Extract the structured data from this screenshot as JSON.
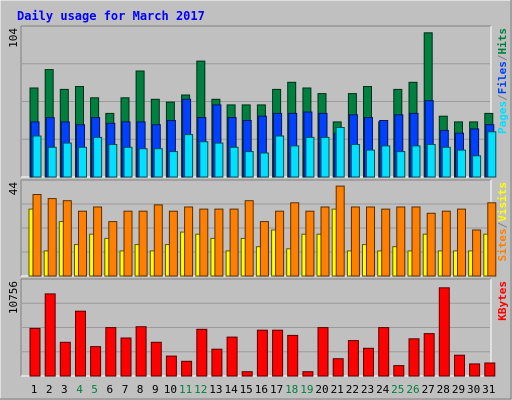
{
  "chart_data": {
    "type": "bar",
    "title": "Daily usage for March 2017",
    "days": [
      "1",
      "2",
      "3",
      "4",
      "5",
      "6",
      "7",
      "8",
      "9",
      "10",
      "11",
      "12",
      "13",
      "14",
      "15",
      "16",
      "17",
      "18",
      "19",
      "20",
      "21",
      "22",
      "23",
      "24",
      "25",
      "26",
      "27",
      "28",
      "29",
      "30",
      "31"
    ],
    "weekend_days": [
      "4",
      "5",
      "11",
      "12",
      "18",
      "19",
      "25",
      "26"
    ],
    "panels": [
      {
        "id": "top",
        "ymax_label": "104",
        "ymax": 104,
        "legend": [
          {
            "label": "Pages",
            "color": "#00e0ff"
          },
          {
            "label": "/",
            "color": "#808080"
          },
          {
            "label": "Files",
            "color": "#0040ff"
          },
          {
            "label": "/",
            "color": "#808080"
          },
          {
            "label": "Hits",
            "color": "#008040"
          }
        ],
        "series": [
          {
            "name": "Hits",
            "color": "#008040",
            "values": [
              63,
              76,
              62,
              64,
              56,
              45,
              56,
              75,
              55,
              53,
              58,
              82,
              55,
              51,
              51,
              51,
              62,
              67,
              63,
              59,
              39,
              59,
              64,
              39,
              62,
              67,
              102,
              43,
              39,
              39,
              45
            ]
          },
          {
            "name": "Files",
            "color": "#0040ff",
            "values": [
              39,
              42,
              39,
              37,
              42,
              38,
              39,
              39,
              37,
              40,
              55,
              42,
              51,
              42,
              40,
              43,
              45,
              45,
              46,
              45,
              31,
              44,
              42,
              40,
              44,
              45,
              54,
              33,
              31,
              34,
              37
            ]
          },
          {
            "name": "Pages",
            "color": "#00e0ff",
            "values": [
              29,
              21,
              24,
              21,
              28,
              23,
              21,
              20,
              20,
              18,
              30,
              25,
              24,
              21,
              18,
              17,
              29,
              22,
              28,
              28,
              35,
              23,
              19,
              22,
              18,
              22,
              23,
              21,
              19,
              15,
              32
            ]
          }
        ]
      },
      {
        "id": "middle",
        "ymax_label": "44",
        "ymax": 44,
        "legend": [
          {
            "label": "Sites",
            "color": "#ff8000"
          },
          {
            "label": "/",
            "color": "#808080"
          },
          {
            "label": "Visits",
            "color": "#ffff00"
          }
        ],
        "series": [
          {
            "name": "Visits",
            "color": "#ffff00",
            "values": [
              32,
              12,
              26,
              15,
              20,
              18,
              12,
              15,
              12,
              15,
              21,
              20,
              18,
              12,
              18,
              14,
              22,
              13,
              20,
              20,
              32,
              12,
              15,
              12,
              14,
              12,
              20,
              12,
              12,
              12,
              20
            ]
          },
          {
            "name": "Sites",
            "color": "#ff8000",
            "values": [
              39,
              37,
              36,
              31,
              33,
              26,
              31,
              31,
              34,
              31,
              33,
              32,
              32,
              32,
              36,
              26,
              31,
              35,
              31,
              33,
              43,
              33,
              33,
              32,
              33,
              33,
              30,
              31,
              32,
              22,
              35
            ]
          }
        ]
      },
      {
        "id": "bottom",
        "ymax_label": "10756",
        "ymax": 10756,
        "legend": [
          {
            "label": "KBytes",
            "color": "#ff0000"
          }
        ],
        "series": [
          {
            "name": "KBytes",
            "color": "#ff0000",
            "values": [
              5500,
              9500,
              3900,
              7500,
              3400,
              5600,
              4400,
              5700,
              3900,
              2300,
              1700,
              5400,
              3100,
              4500,
              500,
              5300,
              5300,
              4700,
              500,
              5600,
              2000,
              4100,
              3200,
              5600,
              1200,
              4300,
              4900,
              10200,
              2400,
              1400,
              1500
            ]
          }
        ]
      }
    ]
  }
}
